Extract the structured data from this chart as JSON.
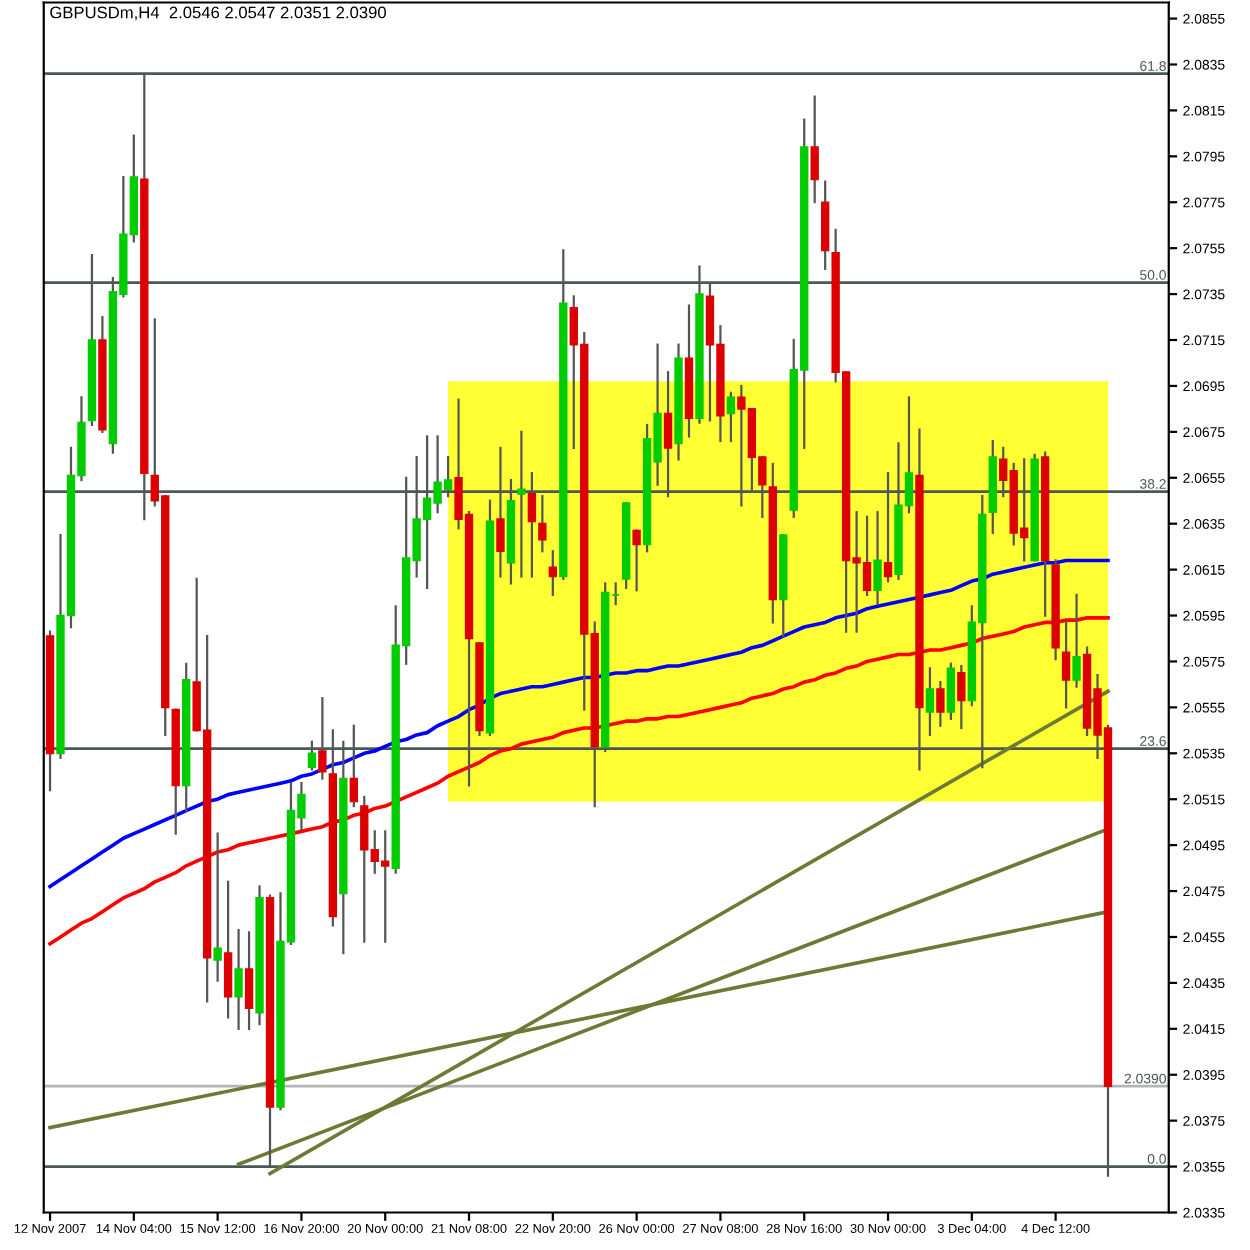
{
  "chart_data": {
    "type": "candlestick",
    "title": "GBPUSDm,H4  2.0546 2.0547 2.0351 2.0390",
    "categories": [
      "12 Nov 2007",
      null,
      null,
      null,
      null,
      null,
      null,
      null,
      "14 Nov 04:00",
      null,
      null,
      null,
      null,
      null,
      null,
      null,
      "15 Nov 12:00",
      null,
      null,
      null,
      null,
      null,
      null,
      null,
      "16 Nov 20:00",
      null,
      null,
      null,
      null,
      null,
      null,
      null,
      "20 Nov 00:00",
      null,
      null,
      null,
      null,
      null,
      null,
      null,
      "21 Nov 08:00",
      null,
      null,
      null,
      null,
      null,
      null,
      null,
      "22 Nov 20:00",
      null,
      null,
      null,
      null,
      null,
      null,
      null,
      "26 Nov 00:00",
      null,
      null,
      null,
      null,
      null,
      null,
      null,
      "27 Nov 08:00",
      null,
      null,
      null,
      null,
      null,
      null,
      null,
      "28 Nov 16:00",
      null,
      null,
      null,
      null,
      null,
      null,
      null,
      "30 Nov 00:00",
      null,
      null,
      null,
      null,
      null,
      null,
      null,
      "3 Dec 04:00",
      null,
      null,
      null,
      null,
      null,
      null,
      null,
      "4 Dec 12:00",
      null,
      null,
      null,
      null,
      null
    ],
    "ohlc": [
      [
        2.0586,
        2.0588,
        2.0519,
        2.0535
      ],
      [
        2.0535,
        2.063,
        2.0533,
        2.0595
      ],
      [
        2.0595,
        2.0668,
        2.059,
        2.0656
      ],
      [
        2.0656,
        2.069,
        2.0654,
        2.0679
      ],
      [
        2.068,
        2.0752,
        2.0678,
        2.0715
      ],
      [
        2.0715,
        2.0725,
        2.0675,
        2.0676
      ],
      [
        2.067,
        2.0742,
        2.0666,
        2.0736
      ],
      [
        2.0735,
        2.0786,
        2.0734,
        2.0761
      ],
      [
        2.0761,
        2.0804,
        2.0758,
        2.0786
      ],
      [
        2.0785,
        2.083,
        2.0637,
        2.0657
      ],
      [
        2.0656,
        2.0724,
        2.0643,
        2.0645
      ],
      [
        2.0647,
        2.0647,
        2.0543,
        2.0555
      ],
      [
        2.0554,
        2.0554,
        2.05,
        2.0521
      ],
      [
        2.0521,
        2.0574,
        2.051,
        2.0567
      ],
      [
        2.0566,
        2.0611,
        2.0545,
        2.0545
      ],
      [
        2.0545,
        2.0586,
        2.0427,
        2.0446
      ],
      [
        2.0445,
        2.05,
        2.0436,
        2.045
      ],
      [
        2.0448,
        2.0479,
        2.042,
        2.0429
      ],
      [
        2.0429,
        2.0458,
        2.0415,
        2.0441
      ],
      [
        2.0441,
        2.0457,
        2.0415,
        2.0424
      ],
      [
        2.0422,
        2.0477,
        2.0417,
        2.0472
      ],
      [
        2.0472,
        2.0473,
        2.0355,
        2.0381
      ],
      [
        2.0381,
        2.0474,
        2.038,
        2.0453
      ],
      [
        2.0453,
        2.0522,
        2.0452,
        2.051
      ],
      [
        2.0507,
        2.0522,
        2.0502,
        2.0517
      ],
      [
        2.0529,
        2.054,
        2.0528,
        2.0535
      ],
      [
        2.0536,
        2.0559,
        2.0524,
        2.0527
      ],
      [
        2.0526,
        2.0545,
        2.046,
        2.0464
      ],
      [
        2.0474,
        2.054,
        2.0448,
        2.0524
      ],
      [
        2.0524,
        2.0547,
        2.0512,
        2.0514
      ],
      [
        2.0512,
        2.0516,
        2.0453,
        2.0493
      ],
      [
        2.0493,
        2.0501,
        2.0483,
        2.0488
      ],
      [
        2.0488,
        2.0501,
        2.0453,
        2.0486
      ],
      [
        2.0485,
        2.0599,
        2.0483,
        2.0582
      ],
      [
        2.0582,
        2.0655,
        2.0574,
        2.062
      ],
      [
        2.0619,
        2.0664,
        2.0612,
        2.0637
      ],
      [
        2.0637,
        2.0673,
        2.0607,
        2.0646
      ],
      [
        2.0644,
        2.0673,
        2.064,
        2.0653
      ],
      [
        2.065,
        2.0664,
        2.0647,
        2.0654
      ],
      [
        2.0655,
        2.0689,
        2.0633,
        2.0637
      ],
      [
        2.0639,
        2.064,
        2.0521,
        2.0585
      ],
      [
        2.0583,
        2.0583,
        2.0543,
        2.0545
      ],
      [
        2.0544,
        2.0645,
        2.0543,
        2.0636
      ],
      [
        2.0637,
        2.0668,
        2.0612,
        2.0623
      ],
      [
        2.0618,
        2.0654,
        2.0609,
        2.0645
      ],
      [
        2.0648,
        2.0675,
        2.0612,
        2.065
      ],
      [
        2.0648,
        2.0657,
        2.0612,
        2.0636
      ],
      [
        2.0635,
        2.0647,
        2.0623,
        2.0628
      ],
      [
        2.0616,
        2.0623,
        2.0604,
        2.0612
      ],
      [
        2.0612,
        2.0754,
        2.0611,
        2.0731
      ],
      [
        2.0729,
        2.0734,
        2.0668,
        2.0713
      ],
      [
        2.0713,
        2.0718,
        2.0554,
        2.0587
      ],
      [
        2.0587,
        2.0592,
        2.0512,
        2.0538
      ],
      [
        2.0538,
        2.0609,
        2.0536,
        2.0605
      ],
      [
        2.0604,
        2.0609,
        2.06,
        2.0604
      ],
      [
        2.0611,
        2.0644,
        2.0607,
        2.0644
      ],
      [
        2.0632,
        2.0632,
        2.0606,
        2.0626
      ],
      [
        2.0626,
        2.0678,
        2.0623,
        2.0672
      ],
      [
        2.0662,
        2.0713,
        2.0652,
        2.0683
      ],
      [
        2.0683,
        2.0701,
        2.0647,
        2.0668
      ],
      [
        2.067,
        2.0713,
        2.0663,
        2.0707
      ],
      [
        2.0707,
        2.073,
        2.0673,
        2.0681
      ],
      [
        2.0681,
        2.0747,
        2.0679,
        2.0735
      ],
      [
        2.0734,
        2.0739,
        2.068,
        2.0713
      ],
      [
        2.0713,
        2.0721,
        2.0671,
        2.0682
      ],
      [
        2.0683,
        2.0692,
        2.0671,
        2.069
      ],
      [
        2.069,
        2.0695,
        2.0643,
        2.0685
      ],
      [
        2.0685,
        2.0685,
        2.065,
        2.0664
      ],
      [
        2.0664,
        2.0664,
        2.0638,
        2.0652
      ],
      [
        2.0651,
        2.0661,
        2.0592,
        2.0602
      ],
      [
        2.0602,
        2.063,
        2.0586,
        2.063
      ],
      [
        2.0641,
        2.0715,
        2.0638,
        2.0702
      ],
      [
        2.0702,
        2.0811,
        2.0668,
        2.0799
      ],
      [
        2.0799,
        2.0821,
        2.0775,
        2.0785
      ],
      [
        2.0775,
        2.0784,
        2.0746,
        2.0754
      ],
      [
        2.0753,
        2.0763,
        2.0697,
        2.0701
      ],
      [
        2.0701,
        2.0701,
        2.0588,
        2.0619
      ],
      [
        2.062,
        2.064,
        2.0588,
        2.0618
      ],
      [
        2.0618,
        2.0638,
        2.0604,
        2.0606
      ],
      [
        2.0606,
        2.064,
        2.06,
        2.0619
      ],
      [
        2.0618,
        2.0657,
        2.061,
        2.0612
      ],
      [
        2.0613,
        2.067,
        2.0611,
        2.0643
      ],
      [
        2.0643,
        2.069,
        2.064,
        2.0657
      ],
      [
        2.0656,
        2.0676,
        2.0528,
        2.0555
      ],
      [
        2.0553,
        2.0572,
        2.0543,
        2.0563
      ],
      [
        2.0563,
        2.0566,
        2.0547,
        2.0553
      ],
      [
        2.0553,
        2.0574,
        2.055,
        2.0572
      ],
      [
        2.057,
        2.0573,
        2.0546,
        2.0558
      ],
      [
        2.0558,
        2.0599,
        2.0556,
        2.0592
      ],
      [
        2.0592,
        2.0647,
        2.0529,
        2.0639
      ],
      [
        2.064,
        2.0671,
        2.0631,
        2.0664
      ],
      [
        2.0663,
        2.0668,
        2.0647,
        2.0654
      ],
      [
        2.0658,
        2.0661,
        2.0626,
        2.0631
      ],
      [
        2.0633,
        2.0663,
        2.0619,
        2.0629
      ],
      [
        2.0619,
        2.0665,
        2.0619,
        2.0663
      ],
      [
        2.0664,
        2.0666,
        2.0595,
        2.0619
      ],
      [
        2.0617,
        2.0619,
        2.0576,
        2.0581
      ],
      [
        2.0579,
        2.0592,
        2.0555,
        2.0567
      ],
      [
        2.0567,
        2.0604,
        2.0564,
        2.0577
      ],
      [
        2.0578,
        2.0581,
        2.0543,
        2.0546
      ],
      [
        2.0563,
        2.0569,
        2.0533,
        2.0543
      ],
      [
        2.0546,
        2.0547,
        2.0351,
        2.039
      ]
    ],
    "colors": [
      "#dd0000",
      "#00cc00",
      "#00cc00",
      "#00cc00",
      "#00cc00",
      "#dd0000",
      "#00cc00",
      "#00cc00",
      "#00cc00",
      "#dd0000",
      "#dd0000",
      "#dd0000",
      "#dd0000",
      "#00cc00",
      "#dd0000",
      "#dd0000",
      "#00cc00",
      "#dd0000",
      "#00cc00",
      "#dd0000",
      "#00cc00",
      "#dd0000",
      "#00cc00",
      "#00cc00",
      "#00cc00",
      "#00cc00",
      "#dd0000",
      "#dd0000",
      "#00cc00",
      "#dd0000",
      "#dd0000",
      "#dd0000",
      "#dd0000",
      "#00cc00",
      "#00cc00",
      "#00cc00",
      "#00cc00",
      "#00cc00",
      "#00cc00",
      "#dd0000",
      "#dd0000",
      "#dd0000",
      "#00cc00",
      "#dd0000",
      "#00cc00",
      "#00cc00",
      "#dd0000",
      "#dd0000",
      "#dd0000",
      "#00cc00",
      "#dd0000",
      "#dd0000",
      "#dd0000",
      "#00cc00",
      "#00cc00",
      "#00cc00",
      "#dd0000",
      "#00cc00",
      "#00cc00",
      "#dd0000",
      "#00cc00",
      "#dd0000",
      "#00cc00",
      "#dd0000",
      "#dd0000",
      "#00cc00",
      "#dd0000",
      "#dd0000",
      "#dd0000",
      "#dd0000",
      "#00cc00",
      "#00cc00",
      "#00cc00",
      "#dd0000",
      "#dd0000",
      "#dd0000",
      "#dd0000",
      "#dd0000",
      "#dd0000",
      "#00cc00",
      "#dd0000",
      "#00cc00",
      "#00cc00",
      "#dd0000",
      "#00cc00",
      "#dd0000",
      "#00cc00",
      "#dd0000",
      "#00cc00",
      "#00cc00",
      "#00cc00",
      "#dd0000",
      "#dd0000",
      "#dd0000",
      "#00cc00",
      "#dd0000",
      "#dd0000",
      "#dd0000",
      "#00cc00",
      "#dd0000",
      "#dd0000",
      "#dd0000"
    ],
    "series": [
      {
        "type": "line",
        "color": "#ffff33",
        "values": [
          null,
          null,
          null,
          null,
          null,
          null,
          null,
          null,
          null,
          null,
          null,
          null,
          null,
          null,
          null,
          null,
          null,
          null,
          null,
          null,
          null,
          null,
          null,
          null,
          null,
          null,
          null,
          null,
          null,
          null,
          null,
          null,
          null,
          null,
          null,
          null,
          null,
          null,
          null,
          null,
          null,
          null,
          null,
          null,
          null,
          null,
          null,
          null,
          null,
          null,
          null,
          null,
          null,
          null,
          null,
          null,
          null,
          null,
          null,
          null,
          null,
          null,
          null,
          null,
          null,
          null,
          null,
          null,
          null,
          null,
          null,
          null,
          null,
          null,
          null,
          null,
          null,
          null,
          null,
          null,
          null,
          null,
          null,
          null,
          null,
          null,
          null,
          null,
          null,
          null,
          null,
          null,
          null,
          null,
          null,
          null,
          null,
          null,
          null,
          null,
          null,
          null
        ],
        "upper": [
          null,
          null,
          null,
          null,
          null,
          null,
          null,
          null,
          null,
          null,
          null,
          null,
          null,
          null,
          null,
          null,
          null,
          null,
          null,
          null,
          null,
          null,
          null,
          null,
          null,
          null,
          null,
          null,
          null,
          null,
          null,
          null,
          null,
          null,
          null,
          null,
          null,
          null,
          2.0697,
          2.0697,
          2.0697,
          2.0697,
          2.0697,
          2.0697,
          2.0697,
          2.0697,
          2.0697,
          2.0697,
          2.0697,
          2.0697,
          2.0697,
          2.0697,
          2.0697,
          2.0697,
          2.0697,
          2.0697,
          2.0697,
          2.0697,
          2.0697,
          2.0697,
          2.0697,
          2.0697,
          2.0697,
          2.0697,
          2.0697,
          2.0697,
          2.0697,
          2.0697,
          2.0697,
          2.0697,
          2.0697,
          2.0697,
          2.0697,
          2.0697,
          2.0697,
          2.0697,
          2.0697,
          2.0697,
          2.0697,
          2.0697,
          2.0697,
          2.0697,
          2.0697,
          2.0697,
          2.0697,
          2.0697,
          2.0697,
          2.0697,
          2.0697,
          2.0697,
          2.0697,
          2.0697,
          2.0697,
          2.0697,
          2.0697,
          2.0697,
          2.0697,
          2.0697,
          2.0697,
          2.0697,
          2.0697,
          2.0697
        ],
        "lower": [
          null,
          null,
          null,
          null,
          null,
          null,
          null,
          null,
          null,
          null,
          null,
          null,
          null,
          null,
          null,
          null,
          null,
          null,
          null,
          null,
          null,
          null,
          null,
          null,
          null,
          null,
          null,
          null,
          null,
          null,
          null,
          null,
          null,
          null,
          null,
          null,
          null,
          null,
          2.0514,
          2.0514,
          2.0514,
          2.0514,
          2.0514,
          2.0514,
          2.0514,
          2.0514,
          2.0514,
          2.0514,
          2.0514,
          2.0514,
          2.0514,
          2.0514,
          2.0514,
          2.0514,
          2.0514,
          2.0514,
          2.0514,
          2.0514,
          2.0514,
          2.0514,
          2.0514,
          2.0514,
          2.0514,
          2.0514,
          2.0514,
          2.0514,
          2.0514,
          2.0514,
          2.0514,
          2.0514,
          2.0514,
          2.0514,
          2.0514,
          2.0514,
          2.0514,
          2.0514,
          2.0514,
          2.0514,
          2.0514,
          2.0514,
          2.0514,
          2.0514,
          2.0514,
          2.0514,
          2.0514,
          2.0514,
          2.0514,
          2.0514,
          2.0514,
          2.0514,
          2.0514,
          2.0514,
          2.0514,
          2.0514,
          2.0514,
          2.0514,
          2.0514,
          2.0514,
          2.0514,
          2.0514,
          2.0514,
          2.0514
        ]
      },
      {
        "type": "line",
        "color": "#0000ff",
        "values": [
          2.0477,
          2.048,
          2.0483,
          2.0486,
          2.0489,
          2.0492,
          2.0495,
          2.0498,
          2.05,
          2.0502,
          2.0504,
          2.0506,
          2.0508,
          2.051,
          2.0512,
          2.0514,
          2.0515,
          2.0517,
          2.0518,
          2.0519,
          2.052,
          2.0521,
          2.0522,
          2.0523,
          2.0525,
          2.0526,
          2.0528,
          2.053,
          2.0531,
          2.0533,
          2.0535,
          2.0536,
          2.0538,
          2.054,
          2.0541,
          2.0543,
          2.0544,
          2.0547,
          2.0549,
          2.0551,
          2.0554,
          2.0556,
          2.0559,
          2.0561,
          2.0562,
          2.0563,
          2.0564,
          2.0564,
          2.0565,
          2.0566,
          2.0567,
          2.0568,
          2.0568,
          2.0569,
          2.057,
          2.057,
          2.0571,
          2.0571,
          2.0572,
          2.0573,
          2.0573,
          2.0574,
          2.0575,
          2.0576,
          2.0577,
          2.0578,
          2.0579,
          2.0581,
          2.0582,
          2.0584,
          2.0586,
          2.0588,
          2.059,
          2.0591,
          2.0592,
          2.0594,
          2.0595,
          2.0596,
          2.0598,
          2.0599,
          2.06,
          2.0601,
          2.0602,
          2.0603,
          2.0604,
          2.0605,
          2.0606,
          2.0608,
          2.061,
          2.0611,
          2.0613,
          2.0614,
          2.0615,
          2.0616,
          2.0617,
          2.0618,
          2.0618,
          2.0619,
          2.0619,
          2.0619,
          2.0619,
          2.0619
        ]
      },
      {
        "type": "line",
        "color": "#ff0000",
        "values": [
          2.0452,
          2.0455,
          2.0458,
          2.0461,
          2.0463,
          2.0466,
          2.0469,
          2.0472,
          2.0474,
          2.0476,
          2.0479,
          2.0481,
          2.0483,
          2.0486,
          2.0488,
          2.049,
          2.0492,
          2.0493,
          2.0495,
          2.0496,
          2.0497,
          2.0498,
          2.0499,
          2.05,
          2.0501,
          2.0502,
          2.0503,
          2.0505,
          2.0506,
          2.0508,
          2.0509,
          2.0511,
          2.0512,
          2.0514,
          2.0516,
          2.0518,
          2.052,
          2.0522,
          2.0525,
          2.0527,
          2.0529,
          2.0531,
          2.0534,
          2.0536,
          2.0537,
          2.0539,
          2.054,
          2.0541,
          2.0542,
          2.0544,
          2.0545,
          2.0546,
          2.0546,
          2.0547,
          2.0548,
          2.0549,
          2.0549,
          2.055,
          2.055,
          2.0551,
          2.0551,
          2.0552,
          2.0553,
          2.0554,
          2.0555,
          2.0556,
          2.0557,
          2.0559,
          2.056,
          2.0561,
          2.0563,
          2.0564,
          2.0566,
          2.0567,
          2.0569,
          2.057,
          2.0572,
          2.0573,
          2.0575,
          2.0576,
          2.0577,
          2.0578,
          2.0578,
          2.0579,
          2.058,
          2.058,
          2.0581,
          2.0582,
          2.0583,
          2.0585,
          2.0586,
          2.0587,
          2.0588,
          2.059,
          2.0591,
          2.0592,
          2.0592,
          2.0593,
          2.0593,
          2.0594,
          2.0594,
          2.0594
        ]
      },
      {
        "type": "line",
        "color": "#6b7a34",
        "values": [
          2.0372,
          null,
          null,
          null,
          null,
          null,
          null,
          null,
          null,
          null,
          null,
          null,
          null,
          null,
          null,
          null,
          null,
          null,
          null,
          null,
          null,
          null,
          null,
          null,
          null,
          null,
          null,
          null,
          null,
          null,
          null,
          null,
          null,
          null,
          null,
          null,
          null,
          null,
          null,
          null,
          null,
          null,
          null,
          null,
          null,
          null,
          null,
          null,
          null,
          null,
          null,
          null,
          null,
          null,
          null,
          null,
          null,
          null,
          null,
          null,
          null,
          null,
          null,
          null,
          null,
          null,
          null,
          null,
          null,
          null,
          null,
          null,
          null,
          null,
          null,
          null,
          null,
          null,
          null,
          null,
          null,
          null,
          null,
          null,
          null,
          null,
          null,
          null,
          null,
          null,
          null,
          null,
          null,
          null,
          null,
          null,
          null,
          null,
          null,
          null,
          null,
          2.0466
        ]
      },
      {
        "type": "line",
        "color": "#6b7a34",
        "values": [
          null,
          null,
          null,
          null,
          null,
          null,
          null,
          null,
          null,
          null,
          null,
          null,
          null,
          null,
          null,
          null,
          null,
          null,
          2.0356,
          null,
          null,
          null,
          null,
          null,
          null,
          null,
          null,
          null,
          null,
          null,
          null,
          null,
          null,
          null,
          null,
          null,
          null,
          null,
          null,
          null,
          null,
          null,
          null,
          null,
          null,
          null,
          null,
          null,
          null,
          null,
          null,
          null,
          null,
          null,
          null,
          null,
          null,
          null,
          null,
          null,
          null,
          null,
          null,
          null,
          null,
          null,
          null,
          null,
          null,
          null,
          null,
          null,
          null,
          null,
          null,
          null,
          null,
          null,
          null,
          null,
          null,
          null,
          null,
          null,
          null,
          null,
          null,
          null,
          null,
          null,
          null,
          null,
          null,
          null,
          null,
          null,
          null,
          null,
          null,
          null,
          null,
          2.0502
        ]
      },
      {
        "type": "line",
        "color": "#6b7a34",
        "values": [
          null,
          null,
          null,
          null,
          null,
          null,
          null,
          null,
          null,
          null,
          null,
          null,
          null,
          null,
          null,
          null,
          null,
          null,
          null,
          null,
          null,
          2.0352,
          null,
          null,
          null,
          null,
          null,
          null,
          null,
          null,
          null,
          null,
          null,
          null,
          null,
          null,
          null,
          null,
          null,
          null,
          null,
          null,
          null,
          null,
          null,
          null,
          null,
          null,
          null,
          null,
          null,
          null,
          null,
          null,
          null,
          null,
          null,
          null,
          null,
          null,
          null,
          null,
          null,
          null,
          null,
          null,
          null,
          null,
          null,
          null,
          null,
          null,
          null,
          null,
          null,
          null,
          null,
          null,
          null,
          null,
          null,
          null,
          null,
          null,
          null,
          null,
          null,
          null,
          null,
          null,
          null,
          null,
          null,
          null,
          null,
          null,
          null,
          null,
          null,
          null,
          null,
          2.0562
        ]
      }
    ],
    "ref_lines": [
      {
        "axis": "y",
        "value": 2.0831,
        "color": "#4a5858"
      },
      {
        "axis": "y",
        "value": 2.074,
        "color": "#4a5858"
      },
      {
        "axis": "y",
        "value": 2.0649,
        "color": "#4a5858"
      },
      {
        "axis": "y",
        "value": 2.0537,
        "color": "#4a5858"
      },
      {
        "axis": "y",
        "value": 2.0355,
        "color": "#4a5858"
      },
      {
        "axis": "y",
        "value": 2.039,
        "label": "2.0390",
        "color": "#b4b4b4"
      }
    ],
    "annotations": [
      {
        "text": "61.8",
        "y": 2.0831
      },
      {
        "text": "50.0",
        "y": 2.074
      },
      {
        "text": "38.2",
        "y": 2.0649
      },
      {
        "text": "23.6",
        "y": 2.0537
      },
      {
        "text": "0.0",
        "y": 2.0355
      }
    ],
    "ylim": [
      2.0335,
      2.0862
    ],
    "yticks": [
      2.0335,
      2.0355,
      2.0375,
      2.0395,
      2.0415,
      2.0435,
      2.0455,
      2.0475,
      2.0495,
      2.0515,
      2.0535,
      2.0555,
      2.0575,
      2.0595,
      2.0615,
      2.0635,
      2.0655,
      2.0675,
      2.0695,
      2.0715,
      2.0735,
      2.0755,
      2.0775,
      2.0795,
      2.0815,
      2.0835,
      2.0855
    ]
  }
}
